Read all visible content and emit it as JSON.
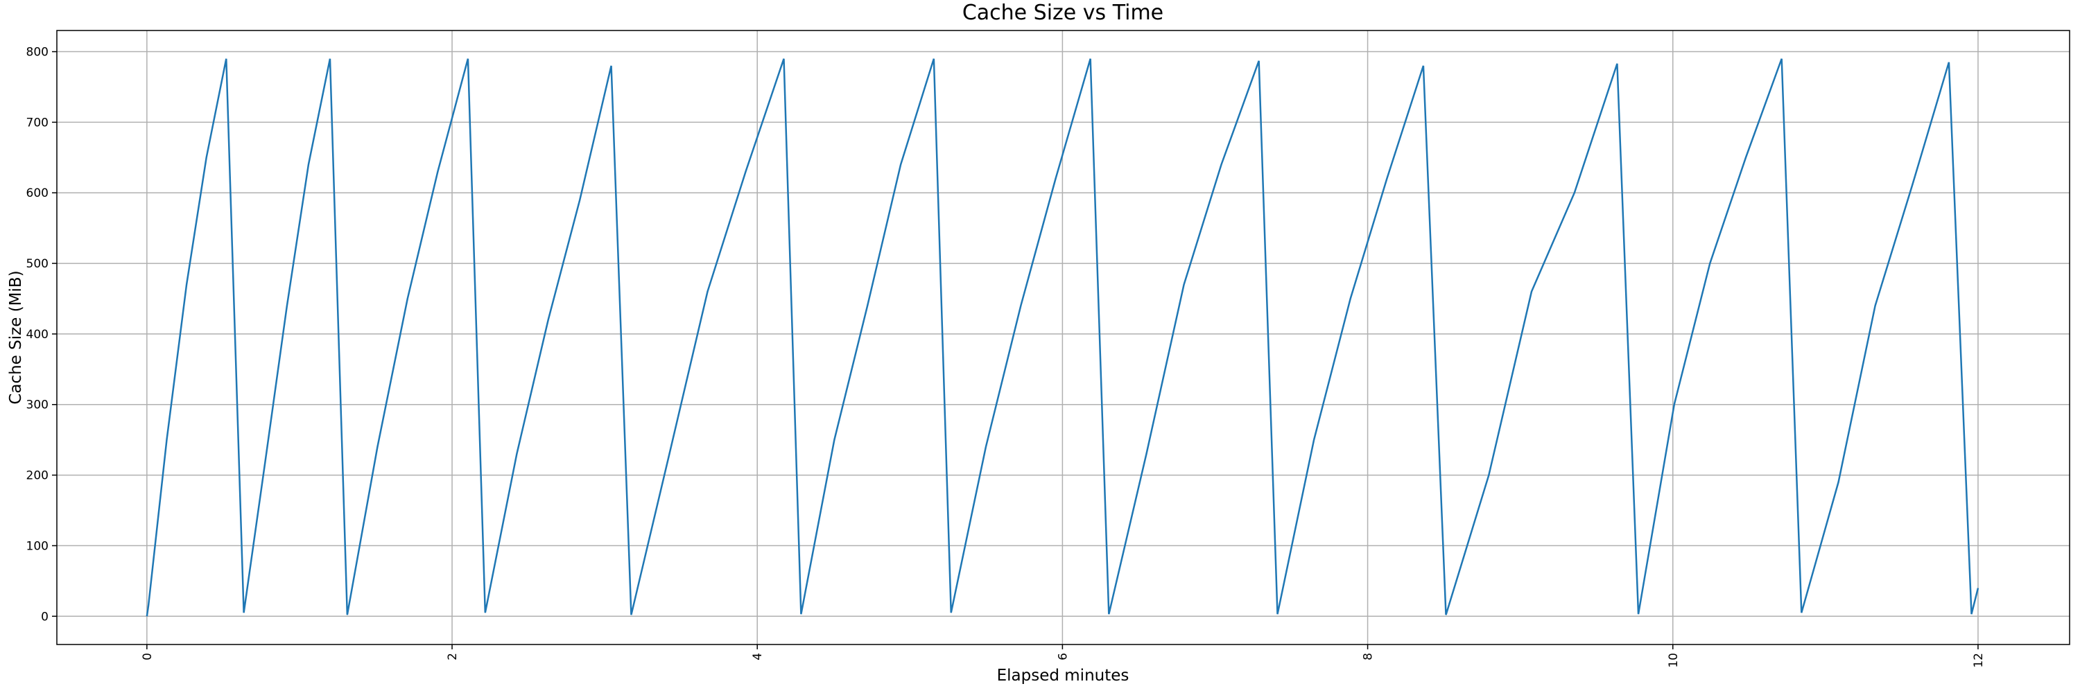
{
  "chart_data": {
    "type": "line",
    "title": "Cache Size vs Time",
    "x_label": "Elapsed minutes",
    "y_label": "Cache Size (MiB)",
    "x": [
      0,
      0.01,
      0.13,
      0.26,
      0.39,
      0.52,
      0.635,
      0.776,
      0.918,
      1.059,
      1.2,
      1.313,
      1.511,
      1.708,
      1.906,
      2.104,
      2.217,
      2.424,
      2.63,
      2.837,
      3.043,
      3.174,
      3.424,
      3.674,
      3.924,
      4.174,
      4.287,
      4.505,
      4.722,
      4.94,
      5.157,
      5.27,
      5.498,
      5.727,
      5.955,
      6.183,
      6.304,
      6.55,
      6.796,
      7.041,
      7.287,
      7.409,
      7.648,
      7.887,
      8.126,
      8.365,
      8.513,
      8.794,
      9.074,
      9.355,
      9.635,
      9.774,
      10.009,
      10.243,
      10.478,
      10.713,
      10.843,
      11.085,
      11.326,
      11.568,
      11.809,
      11.957,
      12.0
    ],
    "series": [
      {
        "name": "Cache Size",
        "color": "#1f77b4",
        "values": [
          0,
          15,
          250,
          470,
          650,
          790,
          5,
          220,
          440,
          640,
          790,
          2,
          240,
          450,
          630,
          790,
          5,
          230,
          420,
          590,
          780,
          2,
          230,
          460,
          630,
          790,
          3,
          250,
          440,
          640,
          790,
          5,
          240,
          440,
          620,
          790,
          3,
          230,
          470,
          640,
          787,
          3,
          250,
          450,
          620,
          780,
          2,
          200,
          460,
          600,
          783,
          3,
          300,
          500,
          650,
          790,
          5,
          190,
          440,
          610,
          785,
          3,
          40
        ]
      }
    ],
    "xlim": [
      -0.59,
      12.6
    ],
    "ylim": [
      -40,
      830
    ],
    "xticks": [
      0,
      2,
      4,
      6,
      8,
      10,
      12
    ],
    "yticks": [
      0,
      100,
      200,
      300,
      400,
      500,
      600,
      700,
      800
    ],
    "grid": true
  }
}
